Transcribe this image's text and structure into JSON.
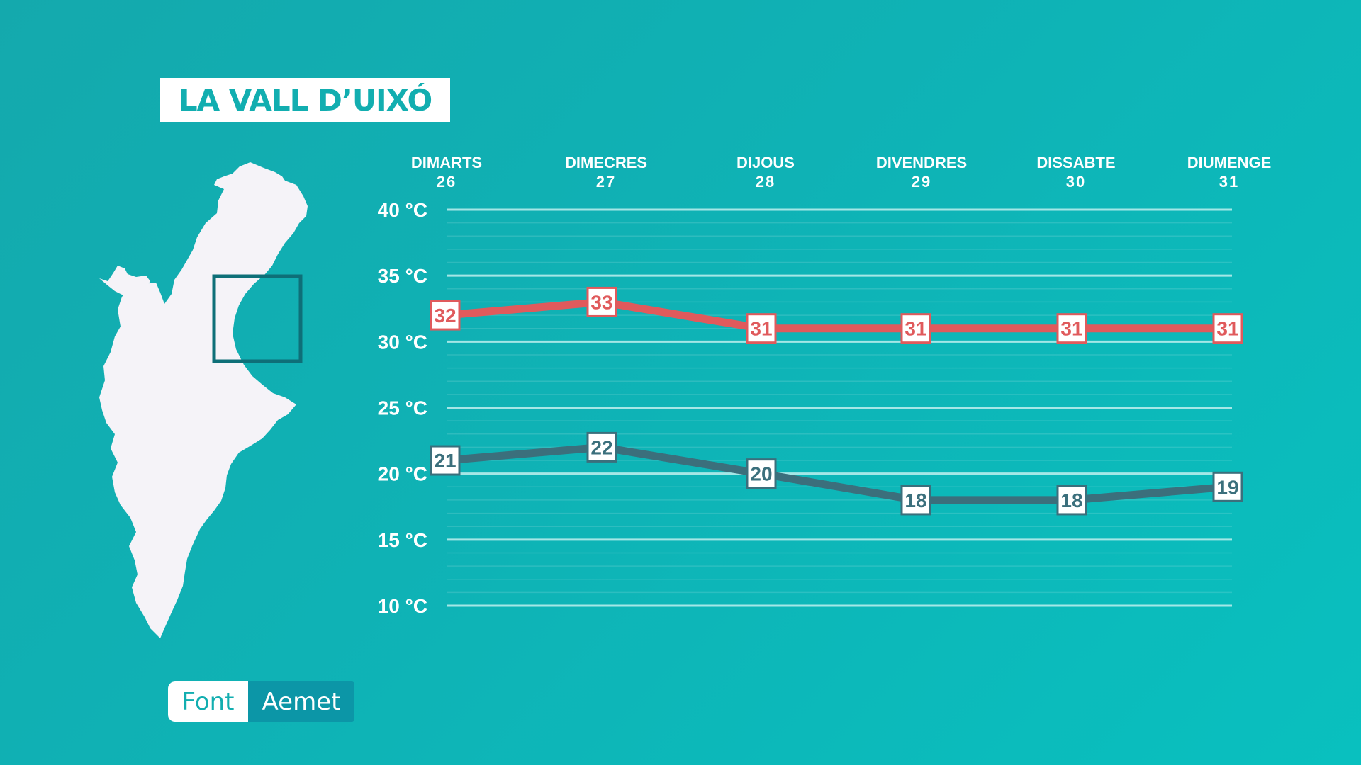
{
  "header": {
    "title": "LA VALL D’UIXÓ"
  },
  "source": {
    "label": "Font",
    "value": "Aemet"
  },
  "map": {
    "icon": "valencian-community-map-icon",
    "fill_color": "#f5f3f8",
    "highlight_color": "#0e6f78"
  },
  "chart_data": {
    "type": "line",
    "categories": [
      {
        "day": "DIMARTS",
        "date": "26"
      },
      {
        "day": "DIMECRES",
        "date": "27"
      },
      {
        "day": "DIJOUS",
        "date": "28"
      },
      {
        "day": "DIVENDRES",
        "date": "29"
      },
      {
        "day": "DISSABTE",
        "date": "30"
      },
      {
        "day": "DIUMENGE",
        "date": "31"
      }
    ],
    "series": [
      {
        "name": "",
        "color": "#e05a5c",
        "values": [
          32,
          33,
          31,
          31,
          31,
          31
        ]
      },
      {
        "name": "",
        "color": "#3b6f7c",
        "values": [
          21,
          22,
          20,
          18,
          18,
          19
        ]
      }
    ],
    "y_ticks": [
      {
        "value": 40,
        "label": "40 °C"
      },
      {
        "value": 35,
        "label": "35 °C"
      },
      {
        "value": 30,
        "label": "30 °C"
      },
      {
        "value": 25,
        "label": "25 °C"
      },
      {
        "value": 20,
        "label": "20 °C"
      },
      {
        "value": 15,
        "label": "15 °C"
      },
      {
        "value": 10,
        "label": "10 °C"
      }
    ],
    "ylim": [
      10,
      40
    ],
    "title": "",
    "xlabel": "",
    "ylabel": "",
    "grid": true,
    "legend": "none"
  }
}
